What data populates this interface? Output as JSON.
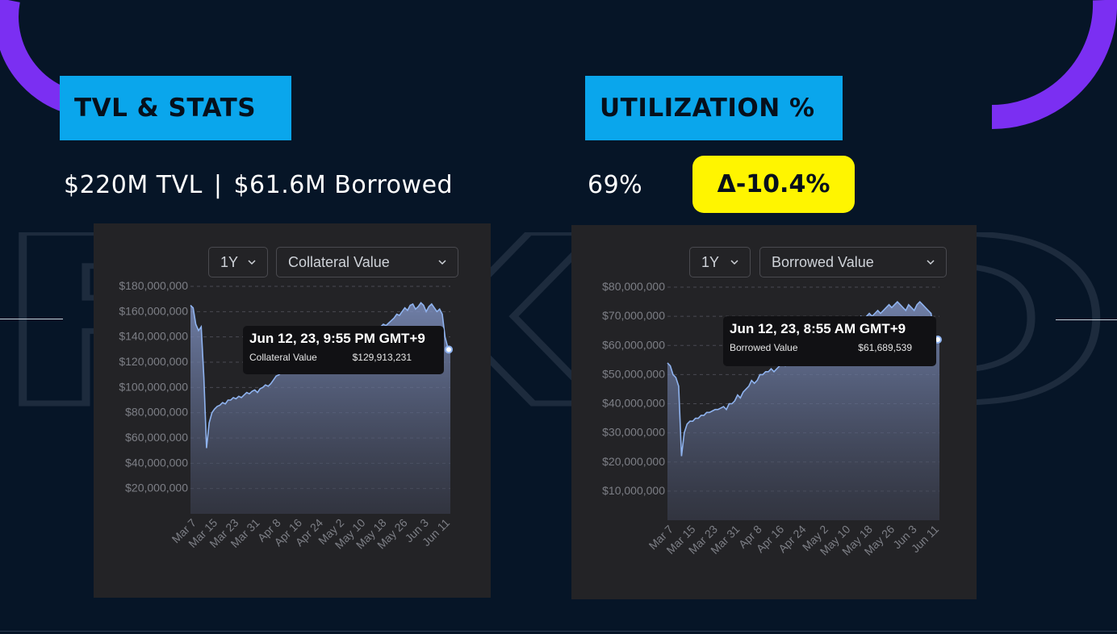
{
  "slide": {
    "bg_color": "#061527",
    "accent_purple": "#7b2ff2",
    "title_bg": "#0aa6ec",
    "badge_bg": "#fff500",
    "background_watermark": "FIXED"
  },
  "left": {
    "title": "TVL & STATS",
    "stat_tvl": "$220M TVL",
    "stat_sep": "|",
    "stat_borrowed": "$61.6M Borrowed",
    "period_label": "1Y",
    "metric_label": "Collateral Value",
    "tooltip": {
      "date": "Jun 12, 23, 9:55 PM GMT+9",
      "label": "Collateral Value",
      "value": "$129,913,231"
    }
  },
  "right": {
    "title": "UTILIZATION %",
    "utilization": "69%",
    "delta": "Δ-10.4%",
    "period_label": "1Y",
    "metric_label": "Borrowed Value",
    "tooltip": {
      "date": "Jun 12, 23, 8:55 AM GMT+9",
      "label": "Borrowed Value",
      "value": "$61,689,539"
    }
  },
  "chart_data": [
    {
      "type": "area",
      "title": "",
      "series": [
        {
          "name": "Collateral Value",
          "x": [
            0,
            1,
            2,
            3,
            4,
            5,
            6,
            7,
            8,
            9,
            10,
            11,
            12,
            13,
            14,
            15,
            16,
            17,
            18,
            19,
            20,
            21,
            22,
            23,
            24,
            25,
            26,
            27,
            28,
            29,
            30,
            31,
            32,
            33,
            34,
            35,
            36,
            37,
            38,
            39,
            40,
            41,
            42,
            43,
            44,
            45,
            46,
            47,
            48,
            49,
            50,
            51,
            52,
            53,
            54,
            55,
            56,
            57,
            58,
            59,
            60,
            61,
            62,
            63,
            64,
            65,
            66,
            67,
            68,
            69,
            70,
            71,
            72,
            73,
            74,
            75,
            76,
            77,
            78,
            79,
            80,
            81,
            82,
            83,
            84,
            85,
            86,
            87,
            88,
            89,
            90,
            91,
            92,
            93,
            94,
            95,
            96,
            97
          ],
          "values": [
            165000000,
            163000000,
            150000000,
            145000000,
            148000000,
            108000000,
            52000000,
            72000000,
            80000000,
            83000000,
            85000000,
            86000000,
            88000000,
            87000000,
            90000000,
            90000000,
            92000000,
            91000000,
            93000000,
            92000000,
            94000000,
            96000000,
            95000000,
            97000000,
            98000000,
            96000000,
            99000000,
            100000000,
            102000000,
            101000000,
            103000000,
            106000000,
            109000000,
            110000000,
            112000000,
            111000000,
            113000000,
            114000000,
            116000000,
            118000000,
            120000000,
            122000000,
            121000000,
            124000000,
            123000000,
            125000000,
            124000000,
            126000000,
            127000000,
            126000000,
            128000000,
            130000000,
            129000000,
            131000000,
            133000000,
            132000000,
            135000000,
            136000000,
            135000000,
            137000000,
            139000000,
            140000000,
            139000000,
            141000000,
            142000000,
            143000000,
            144000000,
            143000000,
            145000000,
            147000000,
            146000000,
            148000000,
            150000000,
            149000000,
            151000000,
            153000000,
            155000000,
            158000000,
            157000000,
            160000000,
            163000000,
            161000000,
            165000000,
            166000000,
            162000000,
            164000000,
            167000000,
            165000000,
            160000000,
            164000000,
            166000000,
            163000000,
            160000000,
            162000000,
            158000000,
            140000000,
            132000000,
            130000000
          ]
        }
      ],
      "xlabel": "",
      "ylabel": "",
      "x_tick_labels": [
        "Mar 7",
        "Mar 15",
        "Mar 23",
        "Mar 31",
        "Apr 8",
        "Apr 16",
        "Apr 24",
        "May 2",
        "May 10",
        "May 18",
        "May 26",
        "Jun 3",
        "Jun 11"
      ],
      "y_tick_labels": [
        "$20,000,000",
        "$40,000,000",
        "$60,000,000",
        "$80,000,000",
        "$100,000,000",
        "$120,000,000",
        "$140,000,000",
        "$160,000,000",
        "$180,000,000"
      ],
      "ylim": [
        0,
        180000000
      ],
      "grid": true,
      "line_color": "#8fb3ef"
    },
    {
      "type": "area",
      "title": "",
      "series": [
        {
          "name": "Borrowed Value",
          "x": [
            0,
            1,
            2,
            3,
            4,
            5,
            6,
            7,
            8,
            9,
            10,
            11,
            12,
            13,
            14,
            15,
            16,
            17,
            18,
            19,
            20,
            21,
            22,
            23,
            24,
            25,
            26,
            27,
            28,
            29,
            30,
            31,
            32,
            33,
            34,
            35,
            36,
            37,
            38,
            39,
            40,
            41,
            42,
            43,
            44,
            45,
            46,
            47,
            48,
            49,
            50,
            51,
            52,
            53,
            54,
            55,
            56,
            57,
            58,
            59,
            60,
            61,
            62,
            63,
            64,
            65,
            66,
            67,
            68,
            69,
            70,
            71,
            72,
            73,
            74,
            75,
            76,
            77,
            78,
            79,
            80,
            81,
            82,
            83,
            84,
            85,
            86,
            87,
            88,
            89,
            90,
            91,
            92,
            93,
            94,
            95,
            96,
            97
          ],
          "values": [
            54000000,
            53000000,
            50000000,
            49000000,
            46000000,
            22000000,
            30000000,
            33000000,
            34000000,
            34000000,
            35000000,
            35000000,
            36000000,
            36000000,
            37000000,
            37000000,
            37500000,
            38000000,
            38000000,
            38500000,
            39000000,
            38000000,
            40000000,
            40000000,
            41000000,
            43000000,
            42000000,
            44000000,
            45000000,
            46000000,
            48000000,
            47000000,
            48000000,
            50000000,
            50000000,
            51000000,
            51000000,
            52000000,
            51000000,
            52000000,
            53000000,
            54000000,
            53000000,
            55000000,
            55000000,
            56000000,
            57000000,
            56000000,
            58000000,
            58000000,
            59000000,
            60000000,
            59000000,
            61000000,
            62000000,
            62000000,
            63000000,
            63000000,
            64000000,
            64000000,
            65000000,
            65000000,
            66000000,
            66000000,
            67000000,
            68000000,
            67000000,
            68000000,
            69000000,
            70000000,
            69000000,
            70000000,
            71000000,
            70000000,
            71000000,
            72000000,
            71000000,
            72000000,
            73000000,
            74000000,
            73000000,
            74000000,
            75000000,
            74000000,
            73000000,
            72000000,
            74000000,
            73000000,
            72000000,
            74000000,
            75000000,
            74000000,
            73000000,
            72000000,
            71000000,
            65000000,
            62000000,
            62000000
          ]
        }
      ],
      "xlabel": "",
      "ylabel": "",
      "x_tick_labels": [
        "Mar 7",
        "Mar 15",
        "Mar 23",
        "Mar 31",
        "Apr 8",
        "Apr 16",
        "Apr 24",
        "May 2",
        "May 10",
        "May 18",
        "May 26",
        "Jun 3",
        "Jun 11"
      ],
      "y_tick_labels": [
        "$10,000,000",
        "$20,000,000",
        "$30,000,000",
        "$40,000,000",
        "$50,000,000",
        "$60,000,000",
        "$70,000,000",
        "$80,000,000"
      ],
      "ylim": [
        0,
        80000000
      ],
      "grid": true,
      "line_color": "#8fb3ef"
    }
  ]
}
